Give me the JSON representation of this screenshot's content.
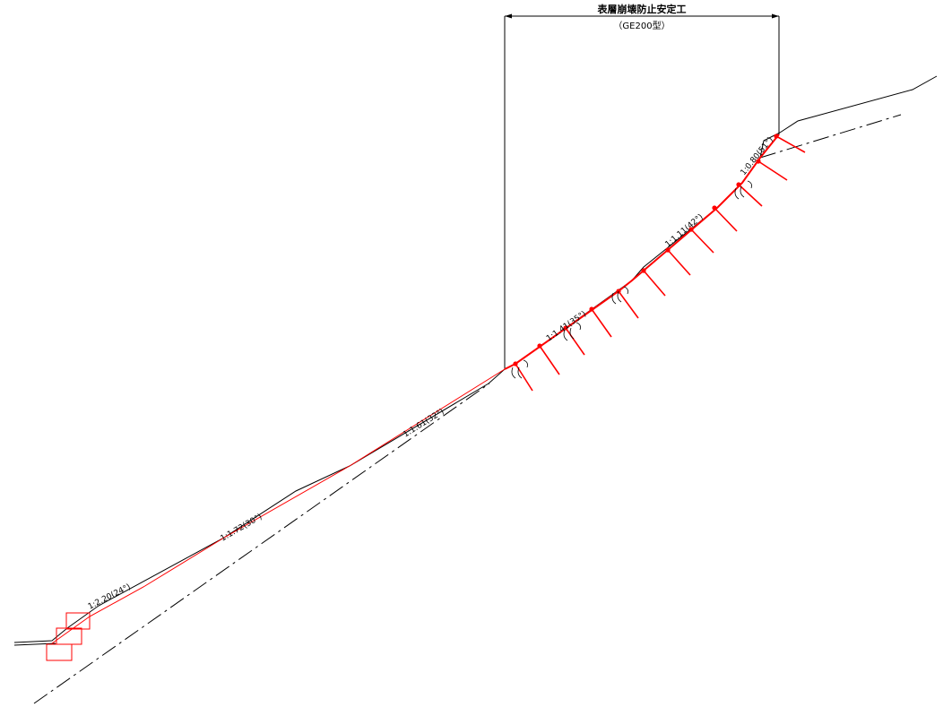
{
  "title": "表層崩壊防止安定工",
  "subtitle": "（GE200型）",
  "slope_labels": [
    "1:2.20(24°)",
    "1:1.72(30°)",
    "1:1.61(32°)",
    "1:1.41(35°)",
    "1:1.11(42°)",
    "1:0.80(51°)"
  ],
  "colors": {
    "line": "#000000",
    "anchor": "#ff0000"
  }
}
